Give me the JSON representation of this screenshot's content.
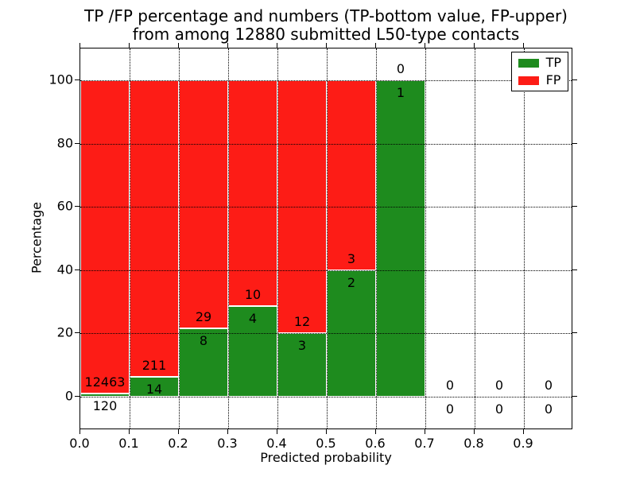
{
  "figure": {
    "title_line1": "TP /FP percentage and numbers (TP-bottom value, FP-upper)",
    "title_line2": "from among 12880 submitted L50-type contacts"
  },
  "axes": {
    "xlabel": "Predicted probability",
    "ylabel": "Percentage",
    "xtick_labels": [
      "0.0",
      "0.1",
      "0.2",
      "0.3",
      "0.4",
      "0.5",
      "0.6",
      "0.7",
      "0.8",
      "0.9"
    ],
    "ytick_values": [
      0,
      20,
      40,
      60,
      80,
      100
    ]
  },
  "legend": {
    "position": "upper right",
    "items": [
      {
        "label": "TP",
        "color": "#1e8b1e"
      },
      {
        "label": "FP",
        "color": "#fd1c16"
      }
    ]
  },
  "chart_data": {
    "type": "bar",
    "stacked": true,
    "normalized_to_percent": true,
    "title": "TP /FP percentage and numbers (TP-bottom value, FP-upper) from among 12880 submitted L50-type contacts",
    "xlabel": "Predicted probability",
    "ylabel": "Percentage",
    "total_contacts": 12880,
    "bin_starts": [
      0.0,
      0.1,
      0.2,
      0.3,
      0.4,
      0.5,
      0.6,
      0.7,
      0.8,
      0.9
    ],
    "bin_width": 0.1,
    "series": [
      {
        "name": "TP",
        "color": "#1e8b1e",
        "counts": [
          120,
          14,
          8,
          4,
          3,
          2,
          1,
          0,
          0,
          0
        ]
      },
      {
        "name": "FP",
        "color": "#fd1c16",
        "counts": [
          12463,
          211,
          29,
          10,
          12,
          3,
          0,
          0,
          0,
          0
        ]
      }
    ],
    "tp_percent": [
      0.95,
      6.22,
      21.62,
      28.57,
      20.0,
      40.0,
      100.0,
      0.0,
      0.0,
      0.0
    ],
    "fp_percent": [
      99.05,
      93.78,
      78.38,
      71.43,
      80.0,
      60.0,
      0.0,
      0.0,
      0.0,
      0.0
    ],
    "xlim": [
      0.0,
      1.0
    ],
    "ylim": [
      -10.6,
      110.1
    ],
    "grid": true,
    "grid_linestyle": "dotted",
    "grid_above_bars": true,
    "bar_edge_color": "#ffffff",
    "value_label_rule": "FP count above stack boundary, TP count below"
  }
}
